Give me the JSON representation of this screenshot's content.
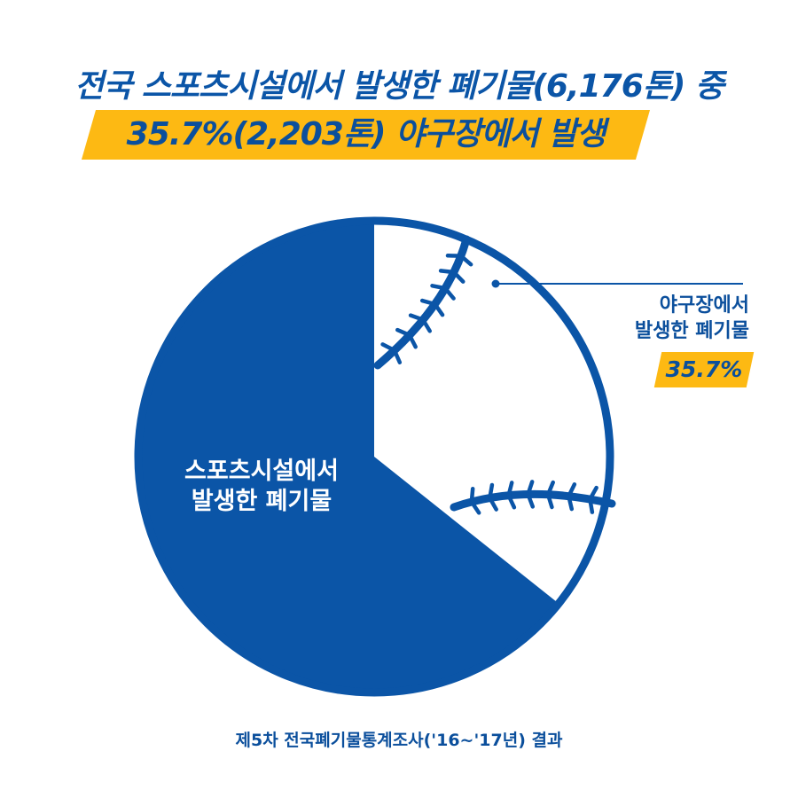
{
  "headline": {
    "line1": "전국 스포츠시설에서 발생한 폐기물(6,176톤) 중",
    "line2": "35.7%(2,203톤) 야구장에서 발생"
  },
  "colors": {
    "primary": "#0b55a7",
    "accent": "#fdb913",
    "background": "#ffffff"
  },
  "chart_data": {
    "type": "pie",
    "slices": [
      {
        "label": "야구장에서 발생한 폐기물",
        "label_lines": [
          "야구장에서",
          "발생한 폐기물"
        ],
        "value": 35.7,
        "value_label": "35.7%",
        "color": "#ffffff"
      },
      {
        "label": "스포츠시설에서 발생한 폐기물",
        "label_lines": [
          "스포츠시설에서",
          "발생한 폐기물"
        ],
        "value": 64.3,
        "color": "#0b55a7"
      }
    ],
    "decoration": "baseball-seams"
  },
  "footnote": "제5차 전국폐기물통계조사('16~'17년) 결과"
}
